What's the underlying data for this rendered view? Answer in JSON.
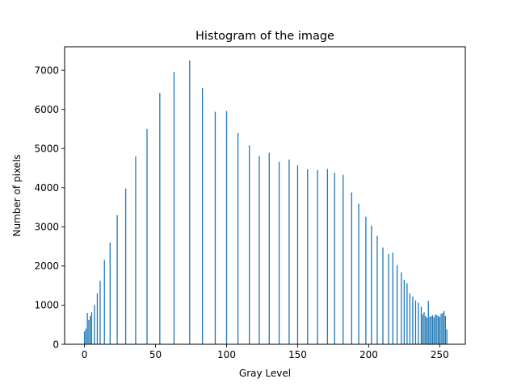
{
  "chart_data": {
    "type": "bar",
    "title": "Histogram of the image",
    "xlabel": "Gray Level",
    "ylabel": "Number of pixels",
    "xlim": [
      -14,
      268
    ],
    "ylim": [
      0,
      7600
    ],
    "xticks": [
      0,
      50,
      100,
      150,
      200,
      250
    ],
    "yticks": [
      0,
      1000,
      2000,
      3000,
      4000,
      5000,
      6000,
      7000
    ],
    "grid": false,
    "bar_color": "#1f77b4",
    "bars": [
      {
        "x": 0,
        "y": 330
      },
      {
        "x": 1,
        "y": 400
      },
      {
        "x": 2,
        "y": 800
      },
      {
        "x": 3,
        "y": 620
      },
      {
        "x": 4,
        "y": 720
      },
      {
        "x": 5,
        "y": 820
      },
      {
        "x": 7,
        "y": 1000
      },
      {
        "x": 9,
        "y": 1300
      },
      {
        "x": 11,
        "y": 1620
      },
      {
        "x": 14,
        "y": 2150
      },
      {
        "x": 18,
        "y": 2600
      },
      {
        "x": 23,
        "y": 3300
      },
      {
        "x": 29,
        "y": 3980
      },
      {
        "x": 36,
        "y": 4800
      },
      {
        "x": 44,
        "y": 5500
      },
      {
        "x": 53,
        "y": 6420
      },
      {
        "x": 63,
        "y": 6960
      },
      {
        "x": 74,
        "y": 7250
      },
      {
        "x": 83,
        "y": 6550
      },
      {
        "x": 92,
        "y": 5940
      },
      {
        "x": 100,
        "y": 5960
      },
      {
        "x": 108,
        "y": 5400
      },
      {
        "x": 116,
        "y": 5080
      },
      {
        "x": 123,
        "y": 4810
      },
      {
        "x": 130,
        "y": 4890
      },
      {
        "x": 137,
        "y": 4660
      },
      {
        "x": 144,
        "y": 4720
      },
      {
        "x": 150,
        "y": 4570
      },
      {
        "x": 157,
        "y": 4470
      },
      {
        "x": 164,
        "y": 4450
      },
      {
        "x": 171,
        "y": 4480
      },
      {
        "x": 176,
        "y": 4380
      },
      {
        "x": 182,
        "y": 4330
      },
      {
        "x": 188,
        "y": 3880
      },
      {
        "x": 193,
        "y": 3590
      },
      {
        "x": 198,
        "y": 3260
      },
      {
        "x": 202,
        "y": 3030
      },
      {
        "x": 206,
        "y": 2770
      },
      {
        "x": 210,
        "y": 2470
      },
      {
        "x": 214,
        "y": 2310
      },
      {
        "x": 217,
        "y": 2340
      },
      {
        "x": 220,
        "y": 2020
      },
      {
        "x": 223,
        "y": 1840
      },
      {
        "x": 225,
        "y": 1650
      },
      {
        "x": 227,
        "y": 1560
      },
      {
        "x": 229,
        "y": 1300
      },
      {
        "x": 231,
        "y": 1220
      },
      {
        "x": 233,
        "y": 1120
      },
      {
        "x": 235,
        "y": 1060
      },
      {
        "x": 237,
        "y": 960
      },
      {
        "x": 238,
        "y": 760
      },
      {
        "x": 239,
        "y": 820
      },
      {
        "x": 240,
        "y": 720
      },
      {
        "x": 241,
        "y": 680
      },
      {
        "x": 242,
        "y": 1110
      },
      {
        "x": 243,
        "y": 700
      },
      {
        "x": 244,
        "y": 720
      },
      {
        "x": 245,
        "y": 740
      },
      {
        "x": 246,
        "y": 690
      },
      {
        "x": 247,
        "y": 760
      },
      {
        "x": 248,
        "y": 750
      },
      {
        "x": 249,
        "y": 720
      },
      {
        "x": 250,
        "y": 700
      },
      {
        "x": 251,
        "y": 780
      },
      {
        "x": 252,
        "y": 800
      },
      {
        "x": 253,
        "y": 850
      },
      {
        "x": 254,
        "y": 720
      },
      {
        "x": 255,
        "y": 380
      }
    ]
  }
}
